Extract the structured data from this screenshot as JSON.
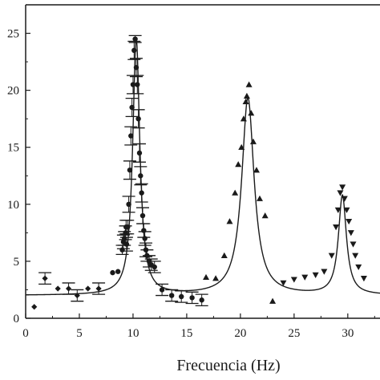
{
  "chart_data": {
    "type": "scatter",
    "title": "",
    "xlabel": "Frecuencia (Hz)",
    "ylabel": "",
    "xlim": [
      0,
      33
    ],
    "ylim": [
      0,
      27.5
    ],
    "grid": false,
    "legend": "none",
    "xticks": [
      0,
      5,
      10,
      15,
      20,
      25,
      30
    ],
    "yticks": [
      0,
      5,
      10,
      15,
      20,
      25
    ],
    "series": [
      {
        "marker": "diamond",
        "x": [
          0.8,
          1.8,
          3.0,
          4.0,
          4.8,
          5.8,
          6.8
        ],
        "y": [
          1.0,
          3.5,
          2.6,
          2.6,
          2.0,
          2.6,
          2.6
        ],
        "err": [
          0.0,
          0.5,
          0.0,
          0.5,
          0.5,
          0.0,
          0.5
        ]
      },
      {
        "marker": "circle",
        "x": [
          8.1,
          8.6,
          9.0,
          9.1,
          9.2,
          9.3,
          9.35,
          9.4,
          9.5,
          9.6,
          9.7,
          9.8,
          9.9,
          10.0,
          10.1,
          10.2,
          10.3,
          10.4,
          10.5,
          10.6,
          10.7,
          10.8,
          10.9,
          11.0,
          11.1,
          11.2,
          11.3,
          11.5,
          11.7,
          12.0,
          12.7,
          13.6,
          14.5,
          15.5,
          16.4
        ],
        "y": [
          4.0,
          4.1,
          6.0,
          6.7,
          7.0,
          7.5,
          8.0,
          6.5,
          8.0,
          10.0,
          13.0,
          16.0,
          18.5,
          20.5,
          23.5,
          24.5,
          22.0,
          20.5,
          17.5,
          14.5,
          12.5,
          11.0,
          9.0,
          7.7,
          7.0,
          6.0,
          5.5,
          5.0,
          4.7,
          4.5,
          2.5,
          2.0,
          1.9,
          1.8,
          1.6
        ],
        "err": [
          0.0,
          0.0,
          0.4,
          0.6,
          0.6,
          0.6,
          0.6,
          0.6,
          0.6,
          0.7,
          0.8,
          0.8,
          0.8,
          0.8,
          0.8,
          0.3,
          0.8,
          0.8,
          0.8,
          0.8,
          0.8,
          0.8,
          0.7,
          0.6,
          0.6,
          0.6,
          0.5,
          0.5,
          0.5,
          0.5,
          0.5,
          0.5,
          0.5,
          0.5,
          0.5
        ]
      },
      {
        "marker": "triangle-up",
        "x": [
          16.8,
          17.7,
          18.5,
          19.0,
          19.5,
          19.8,
          20.1,
          20.3,
          20.5,
          20.6,
          20.8,
          21.0,
          21.2,
          21.5,
          21.8,
          22.3,
          23.0
        ],
        "y": [
          3.6,
          3.5,
          5.5,
          8.5,
          11.0,
          13.5,
          15.0,
          17.5,
          19.0,
          19.5,
          20.5,
          18.0,
          15.5,
          13.0,
          10.5,
          9.0,
          1.5
        ]
      },
      {
        "marker": "triangle-down",
        "x": [
          24.0,
          25.0,
          26.0,
          27.0,
          27.8,
          28.5,
          28.9,
          29.1,
          29.3,
          29.5,
          29.7,
          29.9,
          30.1,
          30.3,
          30.5,
          30.7,
          31.0,
          31.5
        ],
        "y": [
          3.1,
          3.4,
          3.6,
          3.8,
          4.1,
          5.5,
          8.0,
          9.5,
          11.0,
          11.5,
          10.5,
          9.5,
          8.5,
          7.5,
          6.5,
          5.5,
          4.5,
          3.5
        ]
      }
    ],
    "fit_curve": {
      "style": "solid line",
      "peaks": [
        {
          "center": 10.3,
          "height": 22.5,
          "width": 0.4
        },
        {
          "center": 20.7,
          "height": 17.3,
          "width": 0.7
        },
        {
          "center": 29.5,
          "height": 8.7,
          "width": 0.45
        }
      ],
      "baseline": 2.0
    }
  }
}
